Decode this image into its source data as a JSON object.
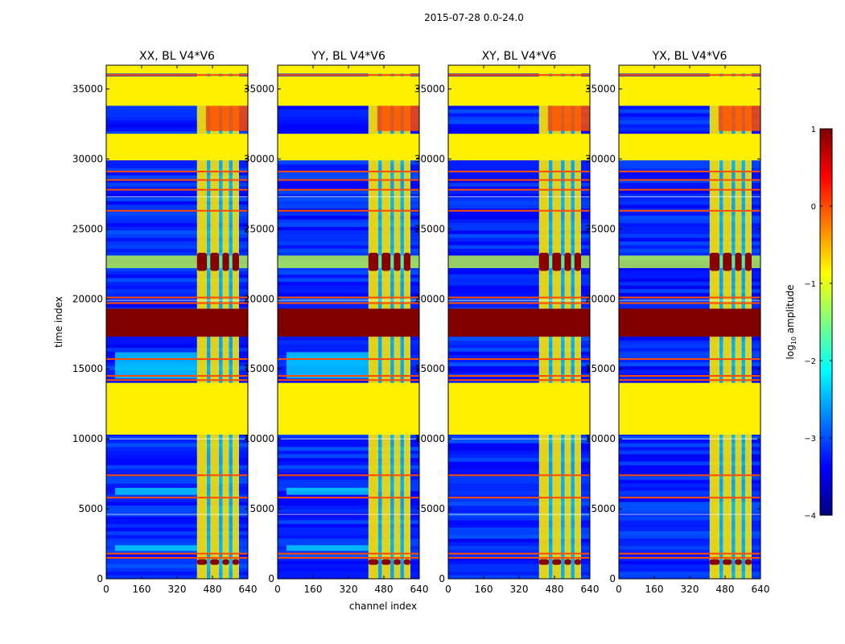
{
  "figure_title": "2015-07-28 0.0-24.0",
  "xlabel": "channel index",
  "ylabel": "time index",
  "colorbar": {
    "label": "log",
    "label_sub": "10",
    "label_suffix": " amplitude",
    "ticks": [
      "1",
      "0",
      "−1",
      "−2",
      "−3",
      "−4"
    ],
    "tick_values": [
      1,
      0,
      -1,
      -2,
      -3,
      -4
    ],
    "range": [
      -4,
      1
    ],
    "colormap": "jet",
    "colormap_stops": [
      "#00007f",
      "#0000ff",
      "#007fff",
      "#00ffff",
      "#7fff7f",
      "#ffff00",
      "#ff7f00",
      "#ff0000",
      "#7f0000"
    ]
  },
  "chart_data": {
    "type": "heatmap",
    "x_range": [
      0,
      640
    ],
    "y_range": [
      0,
      36700
    ],
    "x_ticks": [
      0,
      160,
      320,
      480,
      640
    ],
    "x_tick_labels": [
      "0",
      "160",
      "320",
      "480",
      "640"
    ],
    "y_ticks": [
      0,
      5000,
      10000,
      15000,
      20000,
      25000,
      30000,
      35000
    ],
    "y_tick_labels": [
      "0",
      "5000",
      "10000",
      "15000",
      "20000",
      "25000",
      "30000",
      "35000"
    ],
    "panels": [
      {
        "title": "XX, BL V4*V6",
        "block_channels": [
          410,
          640
        ],
        "bright_band_channels": [
          40,
          410
        ]
      },
      {
        "title": "YY, BL V4*V6",
        "block_channels": [
          410,
          640
        ],
        "bright_band_channels": [
          40,
          410
        ]
      },
      {
        "title": "XY, BL V4*V6",
        "block_channels": [
          410,
          640
        ],
        "bright_band_channels": [
          0,
          0
        ]
      },
      {
        "title": "YX, BL V4*V6",
        "block_channels": [
          410,
          640
        ],
        "bright_band_channels": [
          0,
          0
        ]
      }
    ],
    "regions": [
      {
        "name": "flagged",
        "time": [
          10300,
          14000
        ],
        "log_amplitude": -0.8
      },
      {
        "name": "saturated",
        "time": [
          17300,
          19300
        ],
        "log_amplitude": 1.0
      },
      {
        "name": "flagged",
        "time": [
          29900,
          31800
        ],
        "log_amplitude": -0.8
      },
      {
        "name": "flagged",
        "time": [
          33800,
          35900
        ],
        "log_amplitude": -0.8
      },
      {
        "name": "flagged_top",
        "time": [
          36100,
          36700
        ],
        "log_amplitude": -0.8
      }
    ],
    "active_channel_columns": [
      410,
      455,
      470,
      510,
      525,
      555,
      570,
      600
    ],
    "hot_spots_time": [
      [
        22000,
        23300
      ],
      [
        1000,
        1400
      ]
    ],
    "rfi_lines_time": [
      1500,
      1800,
      5800,
      7400,
      14200,
      14500,
      15700,
      19700,
      20100,
      26300,
      27800,
      28500,
      29100,
      36000
    ]
  }
}
